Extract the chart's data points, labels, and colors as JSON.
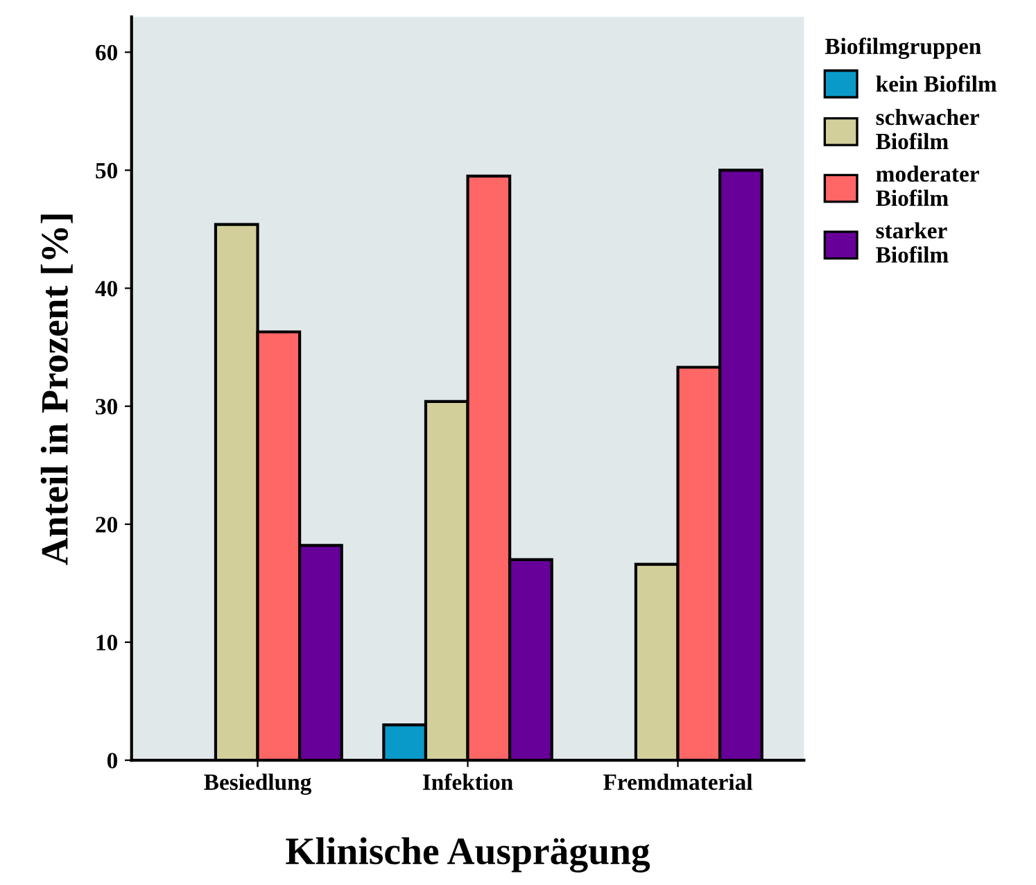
{
  "chart_data": {
    "type": "bar",
    "xlabel": "Klinische Ausprägung",
    "ylabel": "Anteil in Prozent [%]",
    "legend_title": "Biofilmgruppen",
    "categories": [
      "Besiedlung",
      "Infektion",
      "Fremdmaterial"
    ],
    "series": [
      {
        "name": "kein Biofilm",
        "color": "#0a9ac9",
        "values": [
          null,
          3.0,
          null
        ]
      },
      {
        "name": "schwacher\nBiofilm",
        "color": "#d2cf9b",
        "values": [
          45.4,
          30.4,
          16.6
        ]
      },
      {
        "name": "moderater\nBiofilm",
        "color": "#ff6666",
        "values": [
          36.3,
          49.5,
          33.3
        ]
      },
      {
        "name": "starker\nBiofilm",
        "color": "#660099",
        "values": [
          18.2,
          17.0,
          50.0
        ]
      }
    ],
    "ylim": [
      0,
      63
    ],
    "yticks": [
      0,
      10,
      20,
      30,
      40,
      50,
      60
    ],
    "grid": false,
    "legend": "right"
  }
}
